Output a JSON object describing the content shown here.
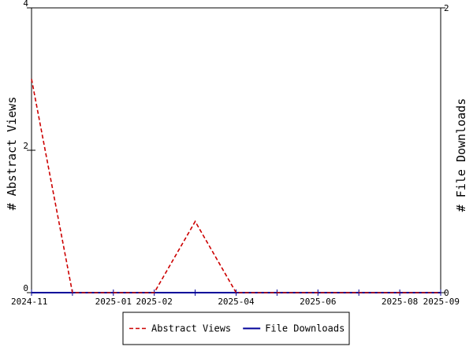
{
  "chart_data": {
    "type": "line",
    "x_ticks": [
      "2024-11",
      "2025-01",
      "2025-02",
      "2025-04",
      "2025-06",
      "2025-08",
      "2025-09"
    ],
    "x_minor_ticks": [
      "2024-12",
      "2025-03",
      "2025-05",
      "2025-07"
    ],
    "xlim": [
      "2024-11",
      "2025-09"
    ],
    "ylabel_left": "# Abstract Views",
    "ylabel_right": "# File Downloads",
    "ylim_left": [
      0,
      4
    ],
    "ylim_right": [
      0,
      2
    ],
    "yticks_left": [
      0,
      2,
      4
    ],
    "yticks_right": [
      0,
      2
    ],
    "series": [
      {
        "name": "Abstract Views",
        "axis": "left",
        "color": "#cc0000",
        "style": "dashed",
        "x": [
          "2024-11",
          "2024-12",
          "2025-01",
          "2025-02",
          "2025-03",
          "2025-04",
          "2025-05",
          "2025-06",
          "2025-07",
          "2025-08",
          "2025-09"
        ],
        "y": [
          3,
          0,
          0,
          0,
          1,
          0,
          0,
          0,
          0,
          0,
          0
        ]
      },
      {
        "name": "File Downloads",
        "axis": "right",
        "color": "#000099",
        "style": "solid",
        "x": [
          "2024-11",
          "2024-12",
          "2025-01",
          "2025-02",
          "2025-03",
          "2025-04",
          "2025-05",
          "2025-06",
          "2025-07",
          "2025-08",
          "2025-09"
        ],
        "y": [
          0,
          0,
          0,
          0,
          0,
          0,
          0,
          0,
          0,
          0,
          0
        ]
      }
    ],
    "legend_position": "bottom-center",
    "grid": false
  }
}
